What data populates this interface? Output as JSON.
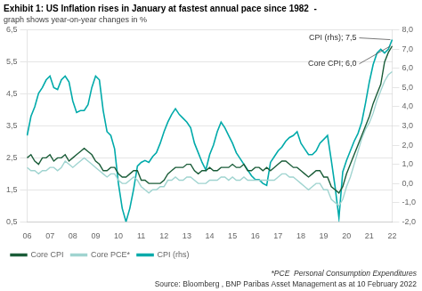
{
  "chart_data": {
    "type": "line",
    "title": "Exhibit 1: US Inflation rises in January at fastest annual pace since 1982  -",
    "subtitle": "graph shows year-on-year changes in %",
    "footnotes": [
      "*PCE  Personal Consumption Expenditures",
      "Source: Bloomberg , BNP Paribas Asset Management as at 10 February 2022"
    ],
    "annotations": [
      {
        "text": "CPI (rhs); 7,5",
        "series": "CPI (rhs)"
      },
      {
        "text": "Core CPI; 6,0",
        "series": "Core CPI"
      }
    ],
    "categories": [
      "06",
      null,
      null,
      null,
      null,
      null,
      "07",
      null,
      null,
      null,
      null,
      null,
      "08",
      null,
      null,
      null,
      null,
      null,
      "09",
      null,
      null,
      null,
      null,
      null,
      "10",
      null,
      null,
      null,
      null,
      null,
      "11",
      null,
      null,
      null,
      null,
      null,
      "12",
      null,
      null,
      null,
      null,
      null,
      "13",
      null,
      null,
      null,
      null,
      null,
      "14",
      null,
      null,
      null,
      null,
      null,
      "15",
      null,
      null,
      null,
      null,
      null,
      "16",
      null,
      null,
      null,
      null,
      null,
      "17",
      null,
      null,
      null,
      null,
      null,
      "18",
      null,
      null,
      null,
      null,
      null,
      "19",
      null,
      null,
      null,
      null,
      null,
      "20",
      null,
      null,
      null,
      null,
      null,
      "21",
      null,
      null,
      null,
      null,
      null,
      "22"
    ],
    "series": [
      {
        "name": "Core CPI",
        "color": "#1a5c38",
        "values": [
          2.5,
          2.6,
          2.4,
          2.3,
          2.5,
          2.5,
          2.6,
          2.4,
          2.5,
          2.5,
          2.6,
          2.4,
          2.5,
          2.6,
          2.7,
          2.8,
          2.7,
          2.6,
          2.4,
          2.3,
          2.1,
          2.1,
          2.2,
          2.2,
          2.0,
          1.9,
          1.9,
          2.0,
          2.1,
          2.1,
          1.8,
          1.8,
          1.7,
          1.7,
          1.7,
          1.7,
          1.8,
          2.0,
          2.1,
          2.2,
          2.2,
          2.2,
          2.3,
          2.3,
          2.1,
          2.0,
          2.1,
          2.1,
          2.2,
          2.1,
          2.1,
          2.2,
          2.2,
          2.2,
          2.3,
          2.2,
          2.2,
          2.3,
          2.1,
          2.1,
          2.2,
          2.2,
          2.1,
          2.2,
          2.1,
          2.2,
          2.3,
          2.4,
          2.4,
          2.3,
          2.2,
          2.2,
          2.1,
          2.0,
          1.9,
          2.0,
          2.1,
          2.1,
          1.9,
          1.9,
          1.6,
          1.5,
          1.4,
          1.6,
          2.0,
          2.3,
          2.6,
          2.9,
          3.2,
          3.5,
          3.8,
          4.2,
          4.5,
          4.8,
          5.5,
          5.8,
          6.0
        ]
      },
      {
        "name": "Core PCE*",
        "color": "#a0d4d0",
        "values": [
          2.2,
          2.1,
          2.1,
          2.0,
          2.1,
          2.1,
          2.2,
          2.2,
          2.1,
          2.2,
          2.4,
          2.3,
          2.2,
          2.3,
          2.4,
          2.5,
          2.4,
          2.3,
          2.2,
          2.1,
          2.0,
          1.9,
          2.0,
          2.0,
          1.8,
          1.7,
          1.7,
          1.8,
          1.9,
          1.8,
          1.6,
          1.5,
          1.4,
          1.5,
          1.5,
          1.6,
          1.6,
          1.8,
          1.8,
          1.9,
          1.8,
          1.8,
          1.9,
          1.9,
          1.8,
          1.7,
          1.7,
          1.7,
          1.8,
          1.8,
          1.8,
          1.9,
          1.9,
          1.8,
          1.9,
          1.8,
          1.8,
          1.9,
          1.8,
          1.8,
          1.8,
          1.8,
          1.8,
          1.8,
          1.8,
          1.8,
          1.9,
          2.0,
          2.0,
          1.9,
          1.9,
          1.8,
          1.7,
          1.6,
          1.5,
          1.6,
          1.7,
          1.7,
          1.5,
          1.5,
          1.2,
          1.1,
          1.0,
          1.2,
          1.6,
          1.9,
          2.3,
          2.7,
          3.1,
          3.4,
          3.6,
          3.9,
          4.3,
          4.6,
          4.9,
          5.1,
          5.2
        ]
      },
      {
        "name": "CPI (rhs)",
        "color": "#00aaaa",
        "axis": "y2",
        "values": [
          2.5,
          3.5,
          4.0,
          4.7,
          5.0,
          5.4,
          5.6,
          5.0,
          4.9,
          5.4,
          5.6,
          5.3,
          4.3,
          3.7,
          3.8,
          3.8,
          4.1,
          5.0,
          5.6,
          5.4,
          3.8,
          2.7,
          2.5,
          1.8,
          0.0,
          -1.3,
          -2.0,
          -1.3,
          -0.3,
          0.9,
          1.1,
          1.2,
          1.1,
          1.4,
          1.6,
          2.1,
          2.7,
          3.2,
          3.6,
          3.9,
          3.6,
          3.4,
          3.2,
          2.9,
          2.1,
          1.6,
          1.1,
          0.7,
          1.5,
          2.0,
          2.7,
          3.2,
          2.9,
          2.5,
          2.1,
          1.6,
          1.3,
          1.0,
          0.7,
          0.4,
          0.2,
          0.2,
          0.0,
          -0.1,
          1.1,
          1.4,
          1.7,
          1.9,
          2.2,
          2.4,
          2.5,
          2.7,
          2.1,
          1.8,
          1.5,
          1.5,
          1.7,
          2.1,
          2.3,
          2.5,
          1.2,
          -0.2,
          -1.8,
          0.6,
          1.2,
          1.7,
          2.2,
          2.6,
          3.2,
          4.2,
          5.3,
          6.2,
          6.8,
          7.0,
          6.8,
          7.0,
          7.5
        ]
      }
    ],
    "ylim": [
      0.5,
      6.5
    ],
    "yticks": [
      {
        "value": 0.5,
        "label": "0,5"
      },
      {
        "value": 1.5,
        "label": "1,5"
      },
      {
        "value": 2.5,
        "label": "2,5"
      },
      {
        "value": 3.5,
        "label": "3,5"
      },
      {
        "value": 4.5,
        "label": "4,5"
      },
      {
        "value": 5.5,
        "label": "5,5"
      },
      {
        "value": 6.5,
        "label": "6,5"
      }
    ],
    "y2lim": [
      -2.0,
      8.0
    ],
    "y2ticks": [
      {
        "value": -2.0,
        "label": "-2,0"
      },
      {
        "value": -1.0,
        "label": "-1,0"
      },
      {
        "value": 0.0,
        "label": "0,0"
      },
      {
        "value": 1.0,
        "label": "1,0"
      },
      {
        "value": 2.0,
        "label": "2,0"
      },
      {
        "value": 3.0,
        "label": "3,0"
      },
      {
        "value": 4.0,
        "label": "4,0"
      },
      {
        "value": 5.0,
        "label": "5,0"
      },
      {
        "value": 6.0,
        "label": "6,0"
      },
      {
        "value": 7.0,
        "label": "7,0"
      },
      {
        "value": 8.0,
        "label": "8,0"
      }
    ],
    "grid": true,
    "legend": "lower left"
  }
}
